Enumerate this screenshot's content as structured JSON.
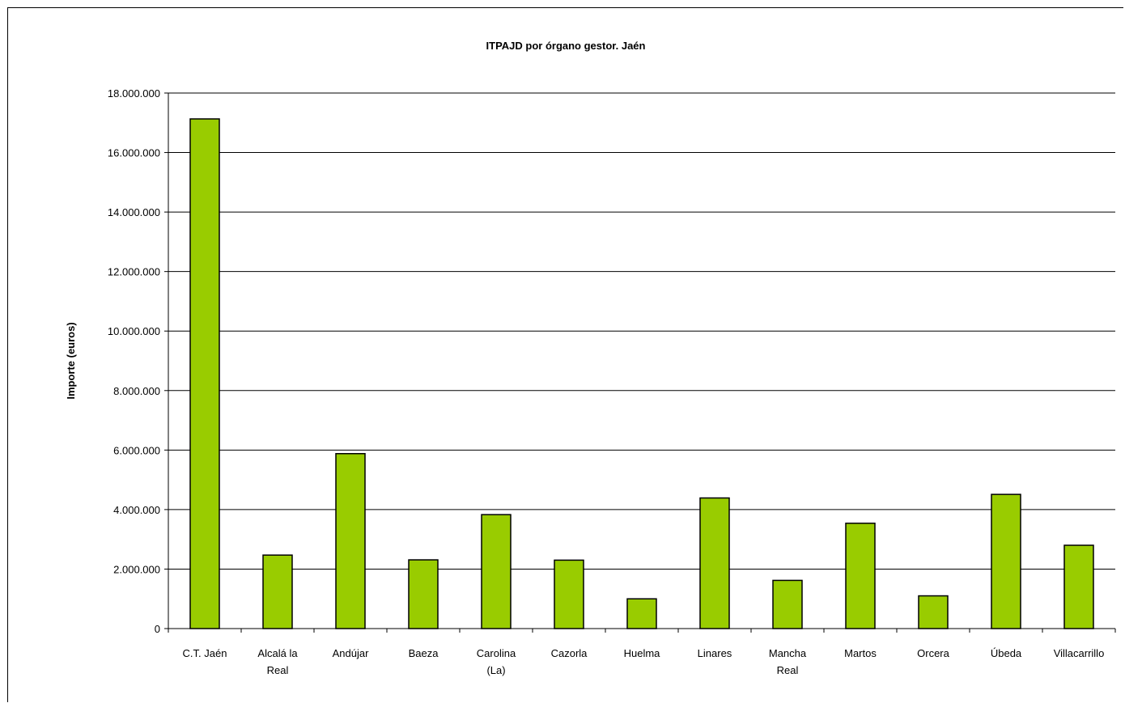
{
  "chart_data": {
    "type": "bar",
    "title": "ITPAJD por órgano gestor. Jaén",
    "xlabel": "",
    "ylabel": "Importe (euros)",
    "ylim": [
      0,
      18000000
    ],
    "yticks": [
      0,
      2000000,
      4000000,
      6000000,
      8000000,
      10000000,
      12000000,
      14000000,
      16000000,
      18000000
    ],
    "ytick_labels": [
      "0",
      "2.000.000",
      "4.000.000",
      "6.000.000",
      "8.000.000",
      "10.000.000",
      "12.000.000",
      "14.000.000",
      "16.000.000",
      "18.000.000"
    ],
    "grid": true,
    "legend": "none",
    "categories": [
      [
        "C.T. Jaén"
      ],
      [
        "Alcalá la",
        "Real"
      ],
      [
        "Andújar"
      ],
      [
        "Baeza"
      ],
      [
        "Carolina",
        "(La)"
      ],
      [
        "Cazorla"
      ],
      [
        "Huelma"
      ],
      [
        "Linares"
      ],
      [
        "Mancha",
        "Real"
      ],
      [
        "Martos"
      ],
      [
        "Orcera"
      ],
      [
        "Úbeda"
      ],
      [
        "Villacarrillo"
      ]
    ],
    "values": [
      17130000,
      2470000,
      5880000,
      2310000,
      3830000,
      2300000,
      1000000,
      4390000,
      1620000,
      3540000,
      1100000,
      4510000,
      2800000
    ],
    "colors": {
      "bar_fill": "#99cc00",
      "bar_stroke": "#000000",
      "grid": "#000000"
    }
  }
}
